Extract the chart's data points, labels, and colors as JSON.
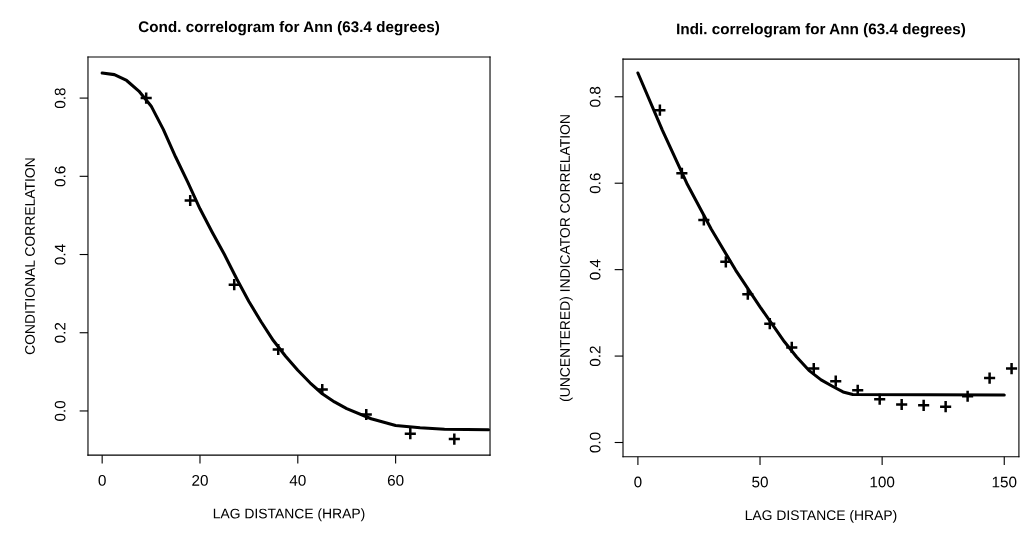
{
  "chart_data": [
    {
      "type": "scatter",
      "title": "Cond. correlogram for Ann (63.4 degrees)",
      "xlabel": "LAG DISTANCE (HRAP)",
      "ylabel": "CONDITIONAL CORRELATION",
      "xlim": [
        -2.9,
        79.3
      ],
      "xticks": [
        0,
        20,
        40,
        60
      ],
      "ylim": [
        -0.113,
        0.905
      ],
      "yticks": [
        {
          "value": 0,
          "label": "0.0"
        },
        {
          "value": 0.2,
          "label": "0.2"
        },
        {
          "value": 0.4,
          "label": "0.4"
        },
        {
          "value": 0.6,
          "label": "0.6"
        },
        {
          "value": 0.8,
          "label": "0.8"
        }
      ],
      "grid": false,
      "series": [
        {
          "color": "#000000",
          "marker": "cross",
          "x": [
            9,
            18,
            27,
            36,
            45,
            54,
            63,
            72
          ],
          "values": [
            0.8,
            0.538,
            0.323,
            0.157,
            0.055,
            -0.009,
            -0.058,
            -0.072
          ]
        },
        {
          "type": "line",
          "color": "#000000",
          "line_style": "solid",
          "x": [
            0,
            2.5,
            5,
            7.5,
            10,
            12.5,
            15,
            17.5,
            20,
            22.5,
            25,
            27.5,
            30,
            32.5,
            35,
            37.5,
            40,
            42.5,
            45,
            47.5,
            50,
            55,
            60,
            65,
            70,
            79
          ],
          "values": [
            0.864,
            0.86,
            0.845,
            0.818,
            0.78,
            0.72,
            0.65,
            0.585,
            0.517,
            0.457,
            0.4,
            0.338,
            0.28,
            0.228,
            0.18,
            0.14,
            0.104,
            0.072,
            0.044,
            0.023,
            0.006,
            -0.02,
            -0.037,
            -0.043,
            -0.047,
            -0.048
          ]
        }
      ]
    },
    {
      "type": "scatter",
      "title": "Indi. correlogram for Ann (63.4 degrees)",
      "xlabel": "LAG DISTANCE (HRAP)",
      "ylabel": "(UNCENTERED) INDICATOR CORRELATION",
      "xlim": [
        -6.1,
        156
      ],
      "xticks": [
        0,
        50,
        100,
        150
      ],
      "ylim": [
        -0.033,
        0.887
      ],
      "yticks": [
        {
          "value": 0,
          "label": "0.0"
        },
        {
          "value": 0.2,
          "label": "0.2"
        },
        {
          "value": 0.4,
          "label": "0.4"
        },
        {
          "value": 0.6,
          "label": "0.6"
        },
        {
          "value": 0.8,
          "label": "0.8"
        }
      ],
      "grid": false,
      "series": [
        {
          "color": "#000000",
          "marker": "cross",
          "x": [
            9,
            18,
            27,
            36,
            45,
            54,
            63,
            72,
            81,
            90,
            99,
            108,
            117,
            126,
            135,
            144,
            153
          ],
          "values": [
            0.769,
            0.623,
            0.515,
            0.418,
            0.343,
            0.275,
            0.22,
            0.171,
            0.142,
            0.121,
            0.1,
            0.088,
            0.086,
            0.083,
            0.107,
            0.149,
            0.171
          ]
        },
        {
          "type": "line",
          "color": "#000000",
          "line_style": "solid",
          "x": [
            0,
            10,
            20,
            30,
            40,
            50,
            60,
            65,
            70,
            75,
            80,
            84,
            88,
            150
          ],
          "values": [
            0.855,
            0.723,
            0.6,
            0.494,
            0.399,
            0.314,
            0.233,
            0.198,
            0.167,
            0.145,
            0.129,
            0.117,
            0.111,
            0.11
          ]
        }
      ]
    }
  ]
}
